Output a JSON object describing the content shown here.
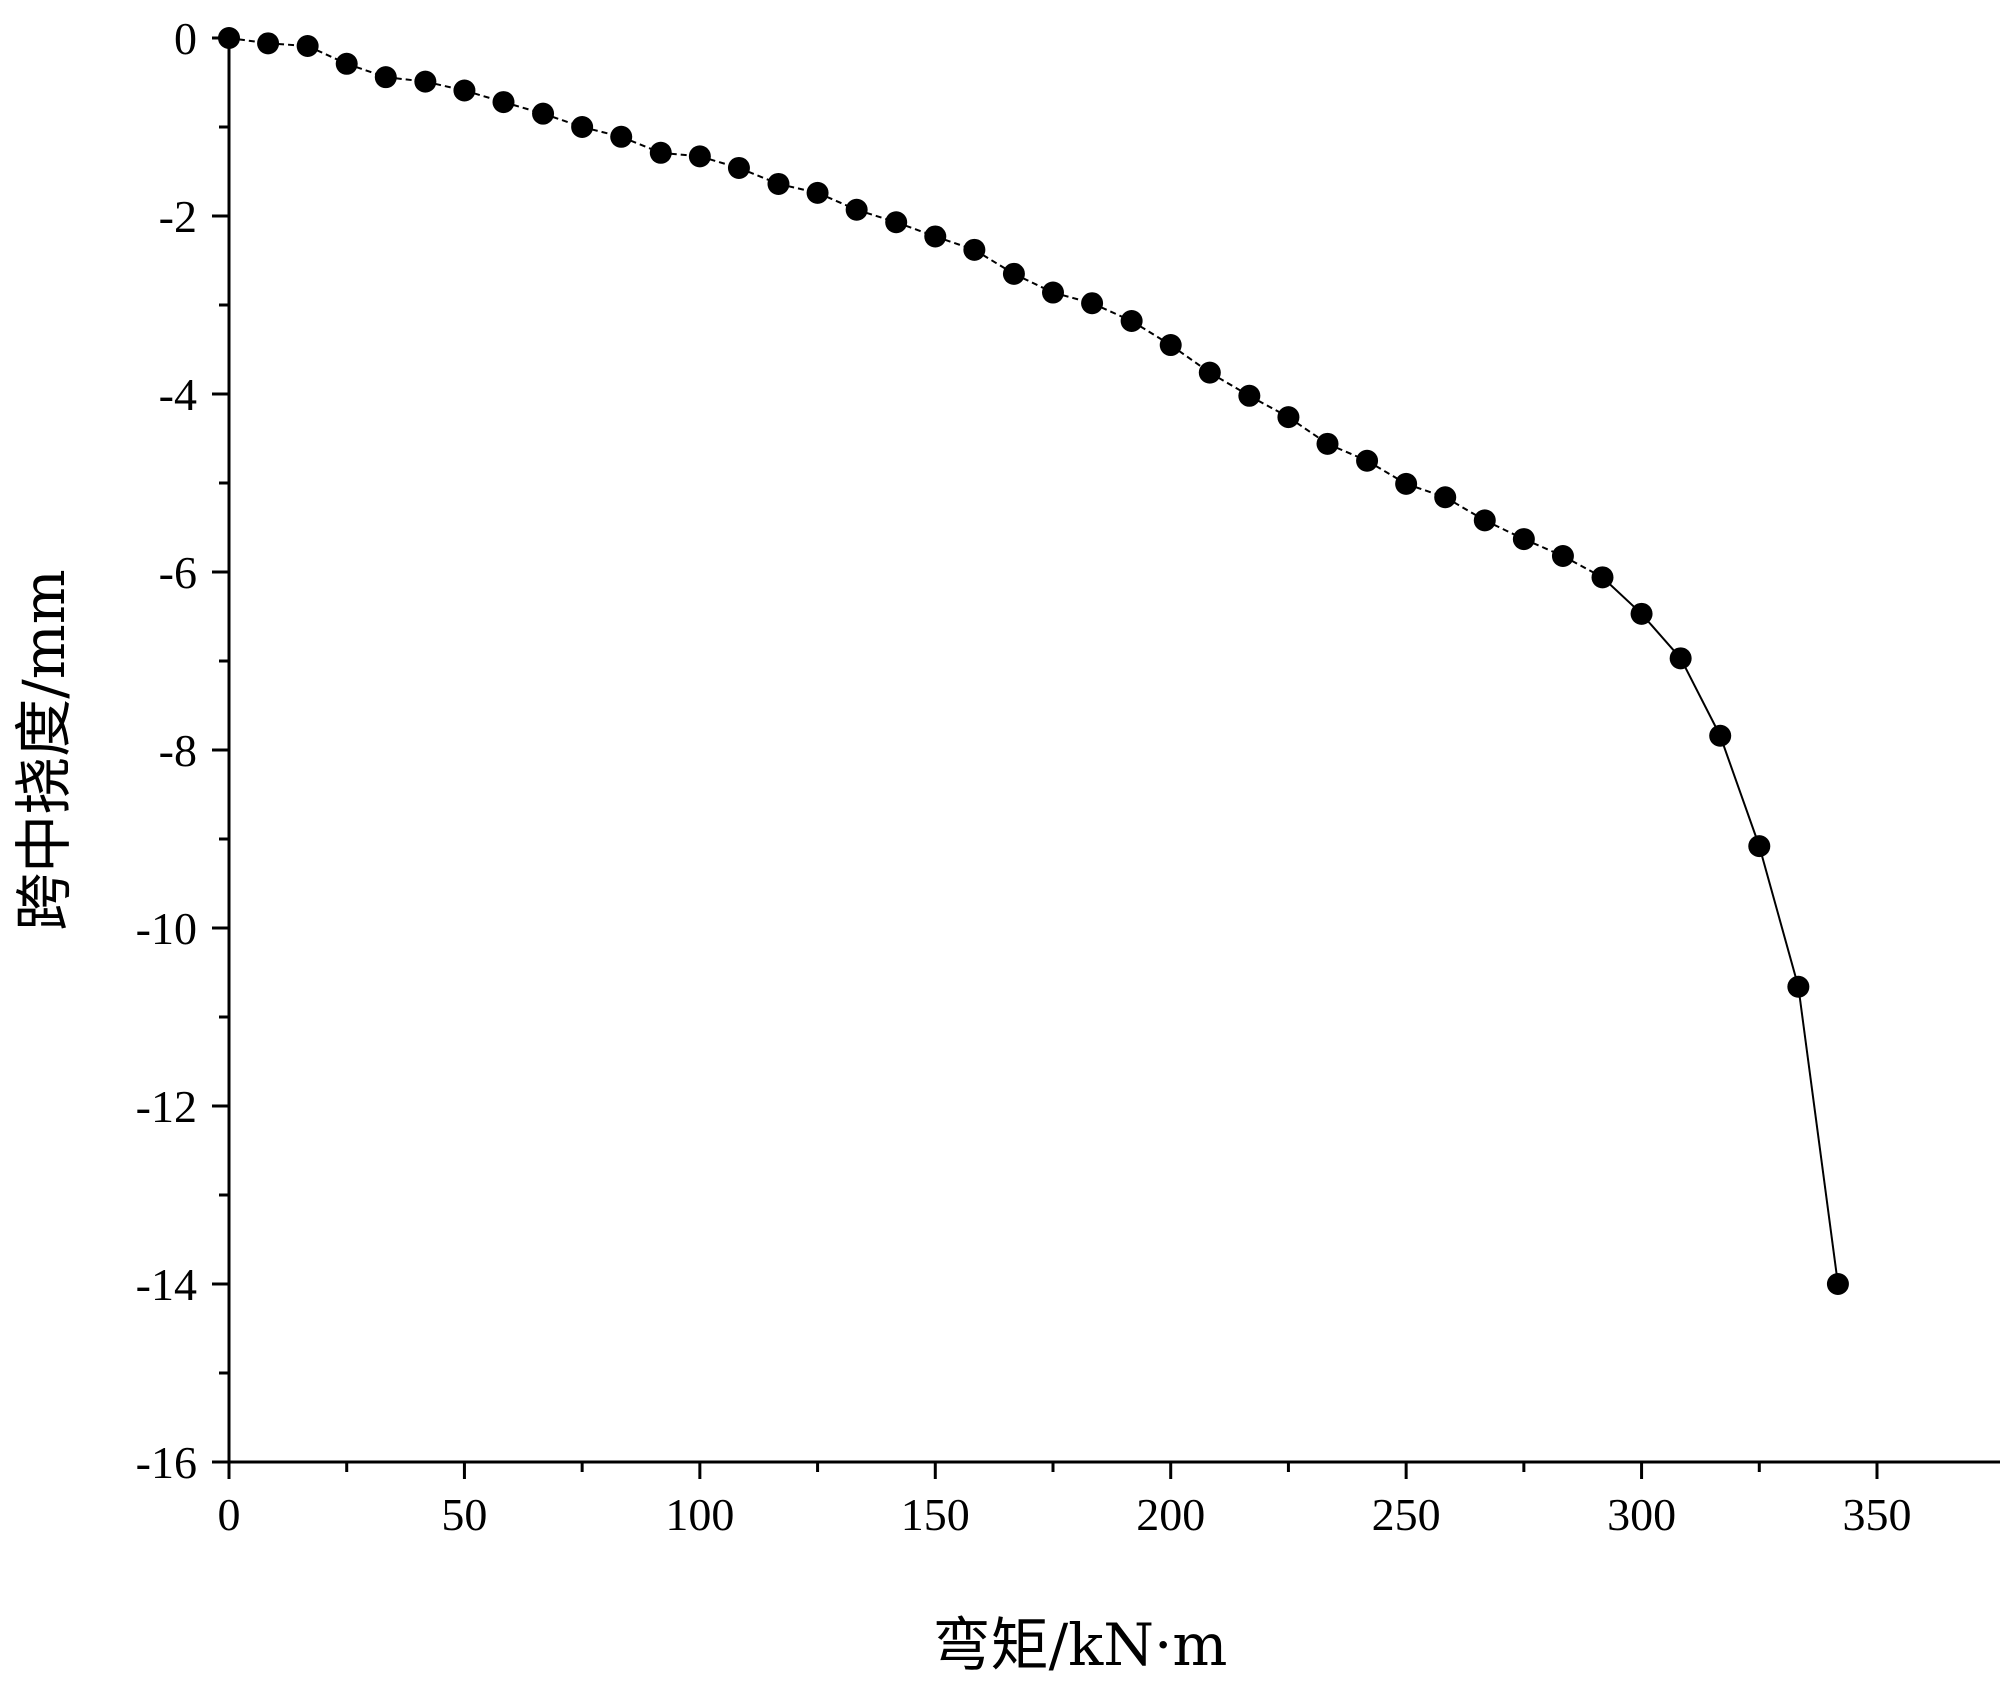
{
  "chart_data": {
    "type": "line",
    "title": "",
    "xlabel": "弯矩/kN·m",
    "ylabel": "跨中挠度/mm",
    "xlim": [
      0,
      375
    ],
    "ylim": [
      -16,
      0
    ],
    "x_major_ticks": [
      0,
      50,
      100,
      150,
      200,
      250,
      300,
      350
    ],
    "x_minor_ticks": [
      25,
      75,
      125,
      175,
      225,
      275,
      325
    ],
    "y_major_ticks": [
      0,
      -2,
      -4,
      -6,
      -8,
      -10,
      -12,
      -14,
      -16
    ],
    "y_minor_ticks": [
      -1,
      -3,
      -5,
      -7,
      -9,
      -11,
      -13,
      -15
    ],
    "x_tick_labels": [
      "0",
      "50",
      "100",
      "150",
      "200",
      "250",
      "300",
      "350"
    ],
    "y_tick_labels": [
      "0",
      "-2",
      "-4",
      "-6",
      "-8",
      "-10",
      "-12",
      "-14",
      "-16"
    ],
    "grid": false,
    "legend": "none",
    "marker_color": "#000000",
    "line_color": "#000000",
    "line_style": "dashed-then-solid",
    "series": [
      {
        "x": [
          0,
          8.3,
          16.7,
          25,
          33.3,
          41.7,
          50,
          58.3,
          66.7,
          75,
          83.3,
          91.7,
          100,
          108.3,
          116.7,
          125,
          133.3,
          141.7,
          150,
          158.3,
          166.7,
          175,
          183.3,
          191.7,
          200,
          208.3,
          216.7,
          225,
          233.3,
          241.7,
          250,
          258.3,
          266.7,
          275,
          283.3,
          291.7,
          300,
          308.3,
          316.7,
          325,
          333.3,
          341.7
        ],
        "y": [
          0,
          -0.06,
          -0.09,
          -0.29,
          -0.44,
          -0.49,
          -0.59,
          -0.72,
          -0.85,
          -1.0,
          -1.11,
          -1.29,
          -1.33,
          -1.46,
          -1.64,
          -1.74,
          -1.93,
          -2.07,
          -2.23,
          -2.38,
          -2.65,
          -2.86,
          -2.98,
          -3.18,
          -3.45,
          -3.76,
          -4.02,
          -4.26,
          -4.56,
          -4.75,
          -5.01,
          -5.16,
          -5.42,
          -5.63,
          -5.82,
          -6.06,
          -6.47,
          -6.97,
          -7.84,
          -9.08,
          -10.66,
          -14.0
        ]
      }
    ]
  }
}
